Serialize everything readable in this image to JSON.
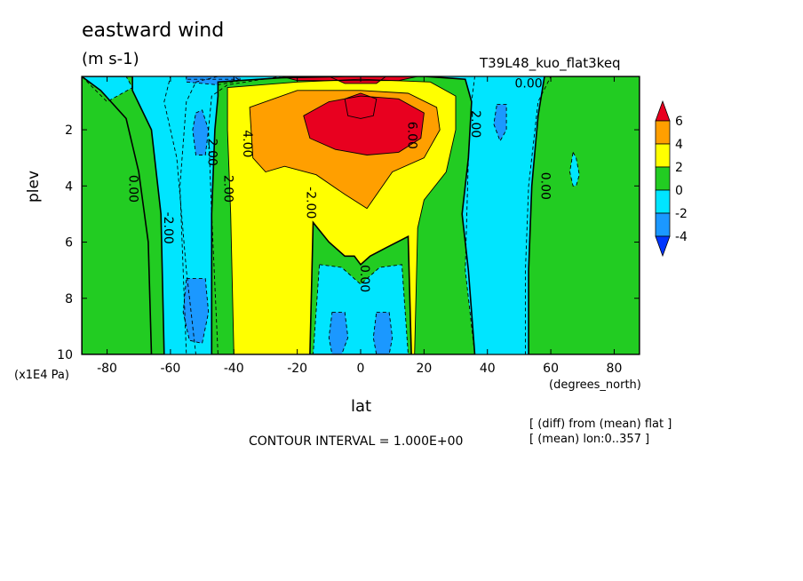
{
  "chart_data": {
    "type": "contour",
    "title": "eastward wind",
    "units": "(m s-1)",
    "run_label": "T39L48_kuo_flat3keq",
    "xlabel": "lat",
    "xlabel_units": "(degrees_north)",
    "ylabel": "plev",
    "ylabel_units": "(x1E4 Pa)",
    "xlim": [
      -88,
      88
    ],
    "ylim": [
      0.1,
      10
    ],
    "y_inverted": true,
    "x_ticks": [
      -80,
      -60,
      -40,
      -20,
      0,
      20,
      40,
      60,
      80
    ],
    "y_ticks": [
      2,
      4,
      6,
      8,
      10
    ],
    "contour_interval_text": "CONTOUR INTERVAL = 1.000E+00",
    "notes": [
      "[ (diff) from (mean) flat ]",
      "[ (mean) lon:0..357 ]"
    ],
    "colorbar": {
      "ticks": [
        6,
        4,
        2,
        0,
        -2,
        -4
      ],
      "levels": [
        {
          "range": [
            6,
            99
          ],
          "color": "#e8001f"
        },
        {
          "range": [
            4,
            6
          ],
          "color": "#ff9f00"
        },
        {
          "range": [
            2,
            4
          ],
          "color": "#ffff00"
        },
        {
          "range": [
            0,
            2
          ],
          "color": "#22cc22"
        },
        {
          "range": [
            -2,
            0
          ],
          "color": "#00e5ff"
        },
        {
          "range": [
            -4,
            -2
          ],
          "color": "#1b98ff"
        },
        {
          "range": [
            -99,
            -4
          ],
          "color": "#0035ff"
        }
      ]
    },
    "contour_labels": [
      {
        "text": "0.00",
        "lat": 53,
        "plev": 0.5
      },
      {
        "text": "2.00",
        "lat": 35,
        "plev": 1.8
      },
      {
        "text": "6.00",
        "lat": 15,
        "plev": 2.2
      },
      {
        "text": "4.00",
        "lat": -37,
        "plev": 2.5
      },
      {
        "text": "2.00",
        "lat": -48,
        "plev": 2.8
      },
      {
        "text": "2.00",
        "lat": -43,
        "plev": 4.1
      },
      {
        "text": "0.00",
        "lat": -73,
        "plev": 4.1
      },
      {
        "text": "-2.00",
        "lat": -62,
        "plev": 5.5
      },
      {
        "text": "-2.00",
        "lat": -17,
        "plev": 4.6
      },
      {
        "text": "0.00",
        "lat": 0,
        "plev": 7.3
      },
      {
        "text": "0.00",
        "lat": 57,
        "plev": 4.0
      }
    ],
    "fields": [
      {
        "level": -2,
        "outline": [
          [
            -88,
            0.1
          ],
          [
            -60,
            0.1
          ],
          [
            -62,
            1
          ],
          [
            -58,
            3
          ],
          [
            -55,
            7
          ],
          [
            -52,
            10
          ],
          [
            -88,
            10
          ]
        ]
      },
      {
        "level": 0,
        "outline": [
          [
            -88,
            0.1
          ],
          [
            -72,
            0.1
          ],
          [
            -72,
            0.6
          ],
          [
            -66,
            2
          ],
          [
            -63,
            5
          ],
          [
            -62,
            10
          ],
          [
            -88,
            10
          ]
        ]
      },
      {
        "level": -2,
        "outline": [
          [
            -88,
            0.1
          ],
          [
            -74,
            0.1
          ],
          [
            -72,
            0.5
          ],
          [
            -80,
            1
          ]
        ]
      },
      {
        "level": 0,
        "outline": [
          [
            -88,
            0.1
          ],
          [
            -88,
            10
          ],
          [
            -66,
            10
          ],
          [
            -67,
            6
          ],
          [
            -70,
            3.5
          ],
          [
            -74,
            1.6
          ],
          [
            -82,
            0.6
          ]
        ]
      },
      {
        "level": -2,
        "outline": [
          [
            -45,
            0.1
          ],
          [
            -25,
            0.1
          ],
          [
            -42,
            0.4
          ],
          [
            -47,
            0.8
          ],
          [
            -48,
            2
          ],
          [
            -47,
            5
          ],
          [
            -45,
            10
          ],
          [
            -55,
            10
          ],
          [
            -57,
            4
          ],
          [
            -55,
            1
          ],
          [
            -52,
            0.3
          ]
        ]
      },
      {
        "level": -4,
        "outline": [
          [
            -52,
            1.4
          ],
          [
            -50,
            1.3
          ],
          [
            -48,
            2
          ],
          [
            -49,
            2.9
          ],
          [
            -52,
            2.9
          ],
          [
            -53,
            2
          ]
        ]
      },
      {
        "level": -4,
        "outline": [
          [
            -55,
            7.3
          ],
          [
            -49,
            7.3
          ],
          [
            -48,
            8.5
          ],
          [
            -50,
            9.6
          ],
          [
            -54,
            9.5
          ],
          [
            -56,
            8.5
          ]
        ]
      },
      {
        "level": -4,
        "outline": [
          [
            -55,
            0.1
          ],
          [
            -40,
            0.1
          ],
          [
            -38,
            0.25
          ],
          [
            -45,
            0.4
          ],
          [
            -55,
            0.3
          ]
        ]
      },
      {
        "level": 0,
        "outline": [
          [
            -45,
            0.3
          ],
          [
            -25,
            0.15
          ],
          [
            -5,
            0.1
          ],
          [
            20,
            0.1
          ],
          [
            33,
            0.2
          ],
          [
            35,
            1
          ],
          [
            34,
            3
          ],
          [
            32,
            5
          ],
          [
            34,
            7
          ],
          [
            36,
            10
          ],
          [
            -47,
            10
          ],
          [
            -47,
            5
          ],
          [
            -46,
            2
          ],
          [
            -45,
            0.8
          ]
        ]
      },
      {
        "level": 2,
        "outline": [
          [
            -42,
            0.5
          ],
          [
            -20,
            0.3
          ],
          [
            0,
            0.2
          ],
          [
            22,
            0.3
          ],
          [
            30,
            0.8
          ],
          [
            30,
            2
          ],
          [
            27,
            3.5
          ],
          [
            20,
            4.5
          ],
          [
            18,
            5.5
          ],
          [
            17,
            10
          ],
          [
            -40,
            10
          ],
          [
            -41,
            5
          ],
          [
            -42,
            2
          ]
        ]
      },
      {
        "level": 0,
        "outline": [
          [
            -15,
            5.3
          ],
          [
            -10,
            6
          ],
          [
            -5,
            6.5
          ],
          [
            -2,
            6.5
          ],
          [
            0,
            6.8
          ],
          [
            3,
            6.5
          ],
          [
            8,
            6.2
          ],
          [
            15,
            5.8
          ],
          [
            16,
            10
          ],
          [
            -16,
            10
          ]
        ]
      },
      {
        "level": -2,
        "outline": [
          [
            -13,
            6.8
          ],
          [
            -6,
            6.9
          ],
          [
            0,
            7.5
          ],
          [
            6,
            6.9
          ],
          [
            13,
            6.8
          ],
          [
            15,
            10
          ],
          [
            -15,
            10
          ]
        ]
      },
      {
        "level": -4,
        "outline": [
          [
            -9,
            8.5
          ],
          [
            -5,
            8.5
          ],
          [
            -4,
            9.4
          ],
          [
            -6,
            10
          ],
          [
            -9,
            10
          ],
          [
            -10,
            9.4
          ]
        ]
      },
      {
        "level": -4,
        "outline": [
          [
            5,
            8.5
          ],
          [
            9,
            8.5
          ],
          [
            10,
            9.4
          ],
          [
            9,
            10
          ],
          [
            5,
            10
          ],
          [
            4,
            9.4
          ]
        ]
      },
      {
        "level": 4,
        "outline": [
          [
            -35,
            1.2
          ],
          [
            -20,
            0.6
          ],
          [
            0,
            0.6
          ],
          [
            15,
            0.7
          ],
          [
            24,
            1.2
          ],
          [
            25,
            2
          ],
          [
            20,
            3
          ],
          [
            10,
            3.5
          ],
          [
            2,
            4.8
          ],
          [
            -5,
            4.3
          ],
          [
            -14,
            3.6
          ],
          [
            -24,
            3.3
          ],
          [
            -30,
            3.5
          ],
          [
            -34,
            3
          ]
        ]
      },
      {
        "level": 6,
        "outline": [
          [
            -18,
            1.5
          ],
          [
            -10,
            1
          ],
          [
            0,
            0.8
          ],
          [
            12,
            0.9
          ],
          [
            20,
            1.4
          ],
          [
            19,
            2.3
          ],
          [
            12,
            2.8
          ],
          [
            2,
            2.9
          ],
          [
            -8,
            2.7
          ],
          [
            -16,
            2.3
          ]
        ]
      },
      {
        "level": 7,
        "outline": [
          [
            -5,
            0.9
          ],
          [
            0,
            0.7
          ],
          [
            5,
            0.9
          ],
          [
            4,
            1.5
          ],
          [
            0,
            1.6
          ],
          [
            -4,
            1.5
          ]
        ]
      },
      {
        "level": -4,
        "outline": [
          [
            -55,
            0.1
          ],
          [
            -38,
            0.1
          ],
          [
            -38,
            0.2
          ],
          [
            -55,
            0.2
          ]
        ]
      },
      {
        "level": 6,
        "outline": [
          [
            -25,
            0.1
          ],
          [
            18,
            0.1
          ],
          [
            12,
            0.25
          ],
          [
            -20,
            0.25
          ]
        ]
      },
      {
        "level": 7,
        "outline": [
          [
            -10,
            0.1
          ],
          [
            8,
            0.1
          ],
          [
            5,
            0.35
          ],
          [
            -5,
            0.35
          ]
        ]
      },
      {
        "level": -2,
        "outline": [
          [
            36,
            0.1
          ],
          [
            60,
            0.1
          ],
          [
            56,
            1
          ],
          [
            53,
            4
          ],
          [
            52,
            7
          ],
          [
            52,
            10
          ],
          [
            36,
            10
          ],
          [
            33,
            7
          ],
          [
            34,
            3
          ],
          [
            35,
            1
          ]
        ]
      },
      {
        "level": -4,
        "outline": [
          [
            43,
            1.1
          ],
          [
            46,
            1.1
          ],
          [
            46,
            2
          ],
          [
            44,
            2.4
          ],
          [
            42,
            1.8
          ]
        ]
      },
      {
        "level": 0,
        "outline": [
          [
            58,
            0.1
          ],
          [
            88,
            0.1
          ],
          [
            88,
            10
          ],
          [
            53,
            10
          ],
          [
            53,
            7
          ],
          [
            54,
            4
          ],
          [
            56,
            1.5
          ]
        ]
      },
      {
        "level": -2,
        "outline": [
          [
            67,
            2.8
          ],
          [
            68,
            3
          ],
          [
            69,
            3.6
          ],
          [
            68,
            4
          ],
          [
            67,
            4
          ],
          [
            66,
            3.5
          ]
        ]
      }
    ]
  }
}
